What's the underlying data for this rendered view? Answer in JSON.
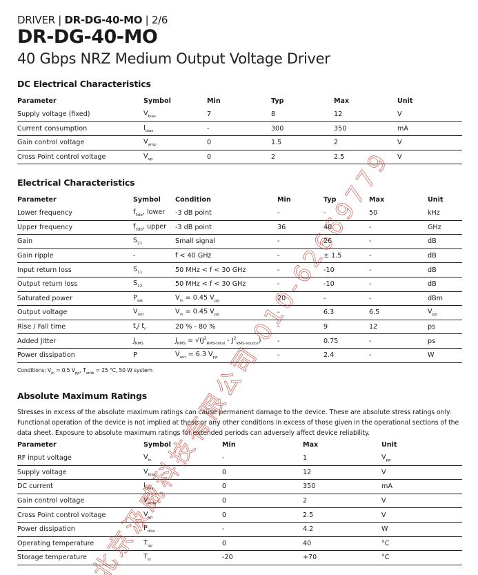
{
  "header": {
    "category": "DRIVER",
    "part": "DR-DG-40-MO",
    "page": "2/6",
    "title": "DR-DG-40-MO",
    "subtitle": "40 Gbps NRZ Medium Output Voltage Driver"
  },
  "watermark": "北京汲威科技有限公司 010-62669779",
  "dc": {
    "title": "DC Electrical Characteristics",
    "columns": [
      "Parameter",
      "Symbol",
      "Min",
      "Typ",
      "Max",
      "Unit"
    ],
    "rows": [
      [
        [
          {
            "t": "Supply voltage (fixed)"
          }
        ],
        [
          {
            "t": "V"
          },
          {
            "s": "bias"
          }
        ],
        [
          {
            "t": "7"
          }
        ],
        [
          {
            "t": "8"
          }
        ],
        [
          {
            "t": "12"
          }
        ],
        [
          {
            "t": "V"
          }
        ]
      ],
      [
        [
          {
            "t": "Current consumption"
          }
        ],
        [
          {
            "t": "I"
          },
          {
            "s": "bias"
          }
        ],
        [
          {
            "t": "-"
          }
        ],
        [
          {
            "t": "300"
          }
        ],
        [
          {
            "t": "350"
          }
        ],
        [
          {
            "t": "mA"
          }
        ]
      ],
      [
        [
          {
            "t": "Gain control voltage"
          }
        ],
        [
          {
            "t": "V"
          },
          {
            "s": "amp"
          }
        ],
        [
          {
            "t": "0"
          }
        ],
        [
          {
            "t": "1.5"
          }
        ],
        [
          {
            "t": "2"
          }
        ],
        [
          {
            "t": "V"
          }
        ]
      ],
      [
        [
          {
            "t": "Cross Point control voltage"
          }
        ],
        [
          {
            "t": "V"
          },
          {
            "s": "xp"
          }
        ],
        [
          {
            "t": "0"
          }
        ],
        [
          {
            "t": "2"
          }
        ],
        [
          {
            "t": "2.5"
          }
        ],
        [
          {
            "t": "V"
          }
        ]
      ]
    ]
  },
  "ec": {
    "title": "Electrical Characteristics",
    "columns": [
      "Parameter",
      "Symbol",
      "Condition",
      "Min",
      "Typ",
      "Max",
      "Unit"
    ],
    "rows": [
      [
        [
          {
            "t": "Lower frequency"
          }
        ],
        [
          {
            "t": "f"
          },
          {
            "s": "3db"
          },
          {
            "t": ", lower"
          }
        ],
        [
          {
            "t": "-3 dB point"
          }
        ],
        [
          {
            "t": "-"
          }
        ],
        [
          {
            "t": "-"
          }
        ],
        [
          {
            "t": "50"
          }
        ],
        [
          {
            "t": "kHz"
          }
        ]
      ],
      [
        [
          {
            "t": "Upper frequency"
          }
        ],
        [
          {
            "t": "f"
          },
          {
            "s": "3db"
          },
          {
            "t": ", upper"
          }
        ],
        [
          {
            "t": "-3 dB point"
          }
        ],
        [
          {
            "t": "36"
          }
        ],
        [
          {
            "t": "40"
          }
        ],
        [
          {
            "t": "-"
          }
        ],
        [
          {
            "t": "GHz"
          }
        ]
      ],
      [
        [
          {
            "t": "Gain"
          }
        ],
        [
          {
            "t": "S"
          },
          {
            "s": "21"
          }
        ],
        [
          {
            "t": "Small signal"
          }
        ],
        [
          {
            "t": "-"
          }
        ],
        [
          {
            "t": "26"
          }
        ],
        [
          {
            "t": "-"
          }
        ],
        [
          {
            "t": "dB"
          }
        ]
      ],
      [
        [
          {
            "t": "Gain ripple"
          }
        ],
        [
          {
            "t": "-"
          }
        ],
        [
          {
            "t": "f < 40 GHz"
          }
        ],
        [
          {
            "t": "-"
          }
        ],
        [
          {
            "t": "± 1.5"
          }
        ],
        [
          {
            "t": "-"
          }
        ],
        [
          {
            "t": "dB"
          }
        ]
      ],
      [
        [
          {
            "t": "Input return loss"
          }
        ],
        [
          {
            "t": "S"
          },
          {
            "s": "11"
          }
        ],
        [
          {
            "t": "50 MHz < f < 30 GHz"
          }
        ],
        [
          {
            "t": "-"
          }
        ],
        [
          {
            "t": "-10"
          }
        ],
        [
          {
            "t": "-"
          }
        ],
        [
          {
            "t": "dB"
          }
        ]
      ],
      [
        [
          {
            "t": "Output return loss"
          }
        ],
        [
          {
            "t": "S"
          },
          {
            "s": "22"
          }
        ],
        [
          {
            "t": "50 MHz < f < 30 GHz"
          }
        ],
        [
          {
            "t": "-"
          }
        ],
        [
          {
            "t": "-10"
          }
        ],
        [
          {
            "t": "-"
          }
        ],
        [
          {
            "t": "dB"
          }
        ]
      ],
      [
        [
          {
            "t": "Saturated power"
          }
        ],
        [
          {
            "t": "P"
          },
          {
            "s": "sat"
          }
        ],
        [
          {
            "t": "V"
          },
          {
            "s": "in"
          },
          {
            "t": " = 0.45 V"
          },
          {
            "s": "pp"
          }
        ],
        [
          {
            "t": "20"
          }
        ],
        [
          {
            "t": "-"
          }
        ],
        [
          {
            "t": "-"
          }
        ],
        [
          {
            "t": "dBm"
          }
        ]
      ],
      [
        [
          {
            "t": "Output voltage"
          }
        ],
        [
          {
            "t": "V"
          },
          {
            "s": "out"
          }
        ],
        [
          {
            "t": "V"
          },
          {
            "s": "in"
          },
          {
            "t": " = 0.45 V"
          },
          {
            "s": "pp"
          }
        ],
        [
          {
            "t": "-"
          }
        ],
        [
          {
            "t": "6.3"
          }
        ],
        [
          {
            "t": "6.5"
          }
        ],
        [
          {
            "t": "V"
          },
          {
            "s": "pp"
          }
        ]
      ],
      [
        [
          {
            "t": "Rise / Fall time"
          }
        ],
        [
          {
            "t": "t"
          },
          {
            "s": "r"
          },
          {
            "t": "/ t"
          },
          {
            "s": "f"
          }
        ],
        [
          {
            "t": "20 % - 80 %"
          }
        ],
        [
          {
            "t": "-"
          }
        ],
        [
          {
            "t": "9"
          }
        ],
        [
          {
            "t": "12"
          }
        ],
        [
          {
            "t": "ps"
          }
        ]
      ],
      [
        [
          {
            "t": "Added Jitter"
          }
        ],
        [
          {
            "t": "J"
          },
          {
            "s": "RMS"
          }
        ],
        [
          {
            "t": "J"
          },
          {
            "s": "RMS"
          },
          {
            "t": " = √(J"
          },
          {
            "p": "2"
          },
          {
            "s": "RMS-total"
          },
          {
            "t": " - J"
          },
          {
            "p": "2"
          },
          {
            "s": "RMS-source"
          },
          {
            "t": ")"
          }
        ],
        [
          {
            "t": "-"
          }
        ],
        [
          {
            "t": "0.75"
          }
        ],
        [
          {
            "t": "-"
          }
        ],
        [
          {
            "t": "ps"
          }
        ]
      ],
      [
        [
          {
            "t": "Power dissipation"
          }
        ],
        [
          {
            "t": "P"
          }
        ],
        [
          {
            "t": "V"
          },
          {
            "s": "out"
          },
          {
            "t": " = 6.3 V"
          },
          {
            "s": "pp"
          }
        ],
        [
          {
            "t": "-"
          }
        ],
        [
          {
            "t": "2.4"
          }
        ],
        [
          {
            "t": "-"
          }
        ],
        [
          {
            "t": "W"
          }
        ]
      ]
    ],
    "note": [
      {
        "t": "Conditions: V"
      },
      {
        "s": "in"
      },
      {
        "t": " = 0.5 V"
      },
      {
        "s": "pp"
      },
      {
        "t": ", T"
      },
      {
        "s": "amb"
      },
      {
        "t": " = 25 °C, 50 W system"
      }
    ]
  },
  "amr": {
    "title": "Absolute Maximum Ratings",
    "description": "Stresses in excess of the absolute maximum ratings can cause permanent damage to the device. These are absolute stress ratings only. Functional operation of the device is not implied at these or any other conditions in excess of those given in the operational sections of the data sheet. Exposure to absolute maximum ratings for extended periods can adversely affect device reliability.",
    "columns": [
      "Parameter",
      "Symbol",
      "Min",
      "Max",
      "Unit"
    ],
    "rows": [
      [
        [
          {
            "t": "RF input voltage"
          }
        ],
        [
          {
            "t": "V"
          },
          {
            "s": "in"
          }
        ],
        [
          {
            "t": "-"
          }
        ],
        [
          {
            "t": "1"
          }
        ],
        [
          {
            "t": "V"
          },
          {
            "s": "pp"
          }
        ]
      ],
      [
        [
          {
            "t": "Supply voltage"
          }
        ],
        [
          {
            "t": "V"
          },
          {
            "s": "bias"
          }
        ],
        [
          {
            "t": "0"
          }
        ],
        [
          {
            "t": "12"
          }
        ],
        [
          {
            "t": "V"
          }
        ]
      ],
      [
        [
          {
            "t": "DC current"
          }
        ],
        [
          {
            "t": "I"
          },
          {
            "s": "bias"
          }
        ],
        [
          {
            "t": "0"
          }
        ],
        [
          {
            "t": "350"
          }
        ],
        [
          {
            "t": "mA"
          }
        ]
      ],
      [
        [
          {
            "t": "Gain control voltage"
          }
        ],
        [
          {
            "t": "V"
          },
          {
            "s": "amp"
          }
        ],
        [
          {
            "t": "0"
          }
        ],
        [
          {
            "t": "2"
          }
        ],
        [
          {
            "t": "V"
          }
        ]
      ],
      [
        [
          {
            "t": "Cross Point control voltage"
          }
        ],
        [
          {
            "t": "V"
          },
          {
            "s": "xp"
          }
        ],
        [
          {
            "t": "0"
          }
        ],
        [
          {
            "t": "2.5"
          }
        ],
        [
          {
            "t": "V"
          }
        ]
      ],
      [
        [
          {
            "t": "Power dissipation"
          }
        ],
        [
          {
            "t": "P"
          },
          {
            "s": "diss"
          }
        ],
        [
          {
            "t": "-"
          }
        ],
        [
          {
            "t": "4.2"
          }
        ],
        [
          {
            "t": "W"
          }
        ]
      ],
      [
        [
          {
            "t": "Operating temperature"
          }
        ],
        [
          {
            "t": "T"
          },
          {
            "s": "op"
          }
        ],
        [
          {
            "t": "0"
          }
        ],
        [
          {
            "t": "40"
          }
        ],
        [
          {
            "t": "°C"
          }
        ]
      ],
      [
        [
          {
            "t": "Storage temperature"
          }
        ],
        [
          {
            "t": "T"
          },
          {
            "s": "st"
          }
        ],
        [
          {
            "t": "-20"
          }
        ],
        [
          {
            "t": "+70"
          }
        ],
        [
          {
            "t": "°C"
          }
        ]
      ]
    ]
  }
}
